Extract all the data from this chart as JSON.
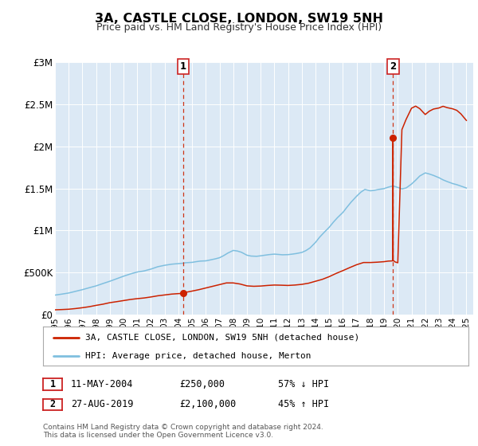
{
  "title": "3A, CASTLE CLOSE, LONDON, SW19 5NH",
  "subtitle": "Price paid vs. HM Land Registry's House Price Index (HPI)",
  "bg_color": "#ffffff",
  "plot_bg_color": "#dce9f5",
  "grid_color": "#ffffff",
  "ylim": [
    0,
    3000000
  ],
  "xlim_start": 1995.0,
  "xlim_end": 2025.5,
  "yticks": [
    0,
    500000,
    1000000,
    1500000,
    2000000,
    2500000,
    3000000
  ],
  "ytick_labels": [
    "£0",
    "£500K",
    "£1M",
    "£1.5M",
    "£2M",
    "£2.5M",
    "£3M"
  ],
  "xticks": [
    1995,
    1996,
    1997,
    1998,
    1999,
    2000,
    2001,
    2002,
    2003,
    2004,
    2005,
    2006,
    2007,
    2008,
    2009,
    2010,
    2011,
    2012,
    2013,
    2014,
    2015,
    2016,
    2017,
    2018,
    2019,
    2020,
    2021,
    2022,
    2023,
    2024,
    2025
  ],
  "hpi_color": "#7fbfdf",
  "price_color": "#cc2200",
  "sale1_x": 2004.36,
  "sale1_y": 250000,
  "sale2_x": 2019.65,
  "sale2_y": 2100000,
  "vline_color": "#cc2200",
  "marker_color": "#cc2200",
  "legend_label1": "3A, CASTLE CLOSE, LONDON, SW19 5NH (detached house)",
  "legend_label2": "HPI: Average price, detached house, Merton",
  "footer": "Contains HM Land Registry data © Crown copyright and database right 2024.\nThis data is licensed under the Open Government Licence v3.0.",
  "label_box_edge": "#cc2222",
  "hpi_anchors_x": [
    1995.0,
    1995.5,
    1996.0,
    1996.5,
    1997.0,
    1997.5,
    1998.0,
    1998.5,
    1999.0,
    1999.5,
    2000.0,
    2000.5,
    2001.0,
    2001.5,
    2002.0,
    2002.5,
    2003.0,
    2003.5,
    2004.0,
    2004.36,
    2004.5,
    2005.0,
    2005.3,
    2005.6,
    2006.0,
    2006.3,
    2006.7,
    2007.0,
    2007.3,
    2007.6,
    2008.0,
    2008.3,
    2008.6,
    2009.0,
    2009.3,
    2009.7,
    2010.0,
    2010.3,
    2010.6,
    2011.0,
    2011.3,
    2011.6,
    2012.0,
    2012.3,
    2012.6,
    2013.0,
    2013.3,
    2013.6,
    2014.0,
    2014.3,
    2014.6,
    2015.0,
    2015.3,
    2015.6,
    2016.0,
    2016.3,
    2016.6,
    2017.0,
    2017.3,
    2017.6,
    2018.0,
    2018.3,
    2018.6,
    2019.0,
    2019.3,
    2019.65,
    2020.0,
    2020.3,
    2020.6,
    2021.0,
    2021.3,
    2021.6,
    2022.0,
    2022.3,
    2022.6,
    2023.0,
    2023.3,
    2023.6,
    2024.0,
    2024.3,
    2024.6,
    2025.0
  ],
  "hpi_anchors_y": [
    230000,
    242000,
    255000,
    275000,
    295000,
    318000,
    340000,
    368000,
    395000,
    425000,
    455000,
    482000,
    505000,
    518000,
    540000,
    568000,
    585000,
    598000,
    605000,
    610000,
    615000,
    620000,
    628000,
    635000,
    638000,
    648000,
    662000,
    675000,
    700000,
    730000,
    762000,
    755000,
    740000,
    705000,
    695000,
    692000,
    698000,
    705000,
    712000,
    718000,
    714000,
    710000,
    712000,
    718000,
    725000,
    738000,
    760000,
    792000,
    858000,
    920000,
    972000,
    1038000,
    1098000,
    1152000,
    1215000,
    1278000,
    1338000,
    1408000,
    1455000,
    1488000,
    1472000,
    1478000,
    1488000,
    1498000,
    1515000,
    1530000,
    1512000,
    1495000,
    1505000,
    1552000,
    1598000,
    1648000,
    1685000,
    1672000,
    1655000,
    1628000,
    1602000,
    1582000,
    1558000,
    1545000,
    1528000,
    1505000
  ],
  "price_anchors_x": [
    1995.0,
    1995.5,
    1996.0,
    1996.5,
    1997.0,
    1997.5,
    1998.0,
    1998.5,
    1999.0,
    1999.5,
    2000.0,
    2000.5,
    2001.0,
    2001.5,
    2002.0,
    2002.5,
    2003.0,
    2003.5,
    2004.0,
    2004.36,
    2004.37,
    2004.5,
    2005.0,
    2005.5,
    2006.0,
    2006.5,
    2007.0,
    2007.5,
    2008.0,
    2008.5,
    2009.0,
    2009.5,
    2010.0,
    2010.5,
    2011.0,
    2011.5,
    2012.0,
    2012.5,
    2013.0,
    2013.5,
    2014.0,
    2014.5,
    2015.0,
    2015.5,
    2016.0,
    2016.5,
    2017.0,
    2017.5,
    2018.0,
    2018.5,
    2019.0,
    2019.3,
    2019.64,
    2019.65,
    2019.66,
    2019.8,
    2020.0,
    2020.3,
    2020.6,
    2021.0,
    2021.3,
    2021.6,
    2022.0,
    2022.3,
    2022.6,
    2023.0,
    2023.3,
    2023.6,
    2024.0,
    2024.3,
    2024.6,
    2025.0
  ],
  "price_anchors_y": [
    55000,
    58000,
    62000,
    70000,
    80000,
    92000,
    108000,
    122000,
    140000,
    152000,
    165000,
    178000,
    188000,
    196000,
    208000,
    222000,
    232000,
    242000,
    248000,
    250000,
    252000,
    262000,
    278000,
    295000,
    315000,
    335000,
    355000,
    375000,
    375000,
    362000,
    340000,
    335000,
    338000,
    345000,
    350000,
    348000,
    345000,
    350000,
    358000,
    372000,
    395000,
    418000,
    450000,
    488000,
    522000,
    558000,
    592000,
    618000,
    618000,
    622000,
    628000,
    635000,
    638000,
    2100000,
    645000,
    625000,
    615000,
    2200000,
    2320000,
    2455000,
    2480000,
    2450000,
    2380000,
    2420000,
    2445000,
    2458000,
    2478000,
    2462000,
    2448000,
    2430000,
    2388000,
    2310000
  ]
}
